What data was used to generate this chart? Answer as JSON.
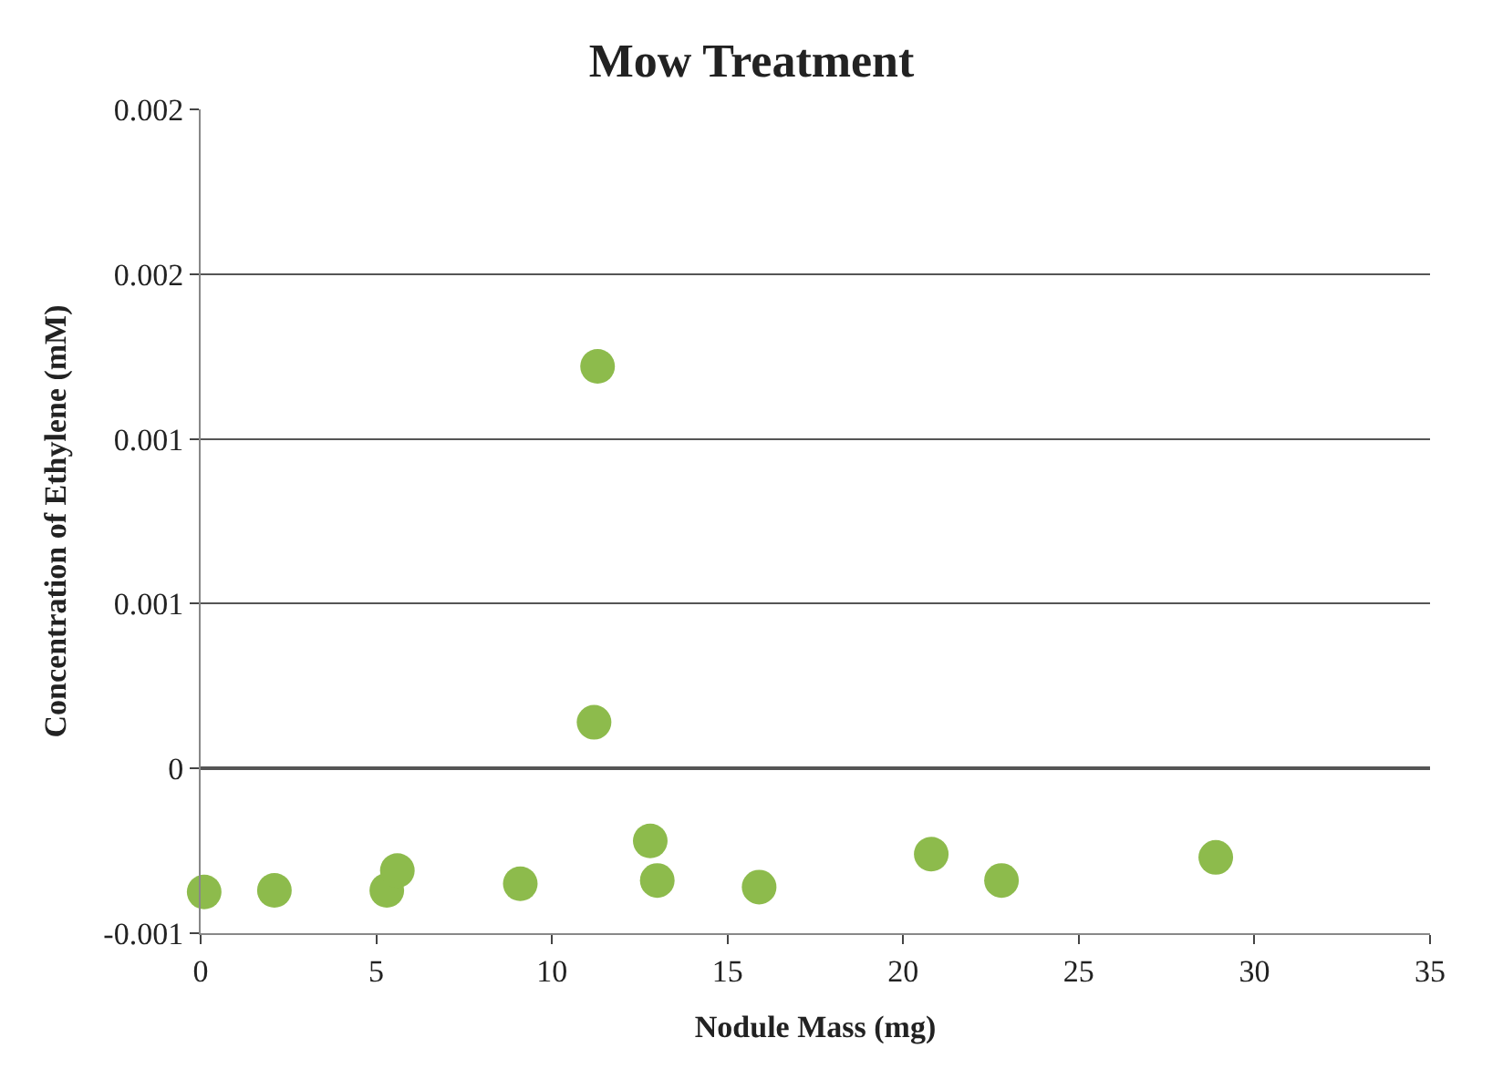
{
  "chart_data": {
    "type": "scatter",
    "title": "Mow Treatment",
    "xlabel": "Nodule Mass (mg)",
    "ylabel": "Concentration of Ethylene (mM)",
    "x": [
      0.1,
      2.1,
      5.3,
      5.6,
      9.1,
      11.3,
      11.2,
      12.8,
      13.0,
      15.9,
      20.8,
      22.8,
      28.9
    ],
    "series": [
      {
        "color": "#8dbb4c",
        "values": [
          -0.000375,
          -0.00037,
          -0.00037,
          -0.00031,
          -0.00035,
          0.00122,
          0.00014,
          -0.00022,
          -0.00034,
          -0.00036,
          -0.00026,
          -0.00034,
          -0.00027
        ]
      }
    ],
    "xlim": [
      0,
      35
    ],
    "xticks": [
      0,
      5,
      10,
      15,
      20,
      25,
      30,
      35
    ],
    "ylim": [
      -0.0005,
      0.002
    ],
    "yticks": [
      {
        "value": -0.0005,
        "label": "-0.001"
      },
      {
        "value": 0,
        "label": "0"
      },
      {
        "value": 0.0005,
        "label": "0.001"
      },
      {
        "value": 0.001,
        "label": "0.001"
      },
      {
        "value": 0.0015,
        "label": "0.002"
      },
      {
        "value": 0.002,
        "label": "0.002"
      }
    ],
    "grid": "y",
    "marker": "circle"
  }
}
